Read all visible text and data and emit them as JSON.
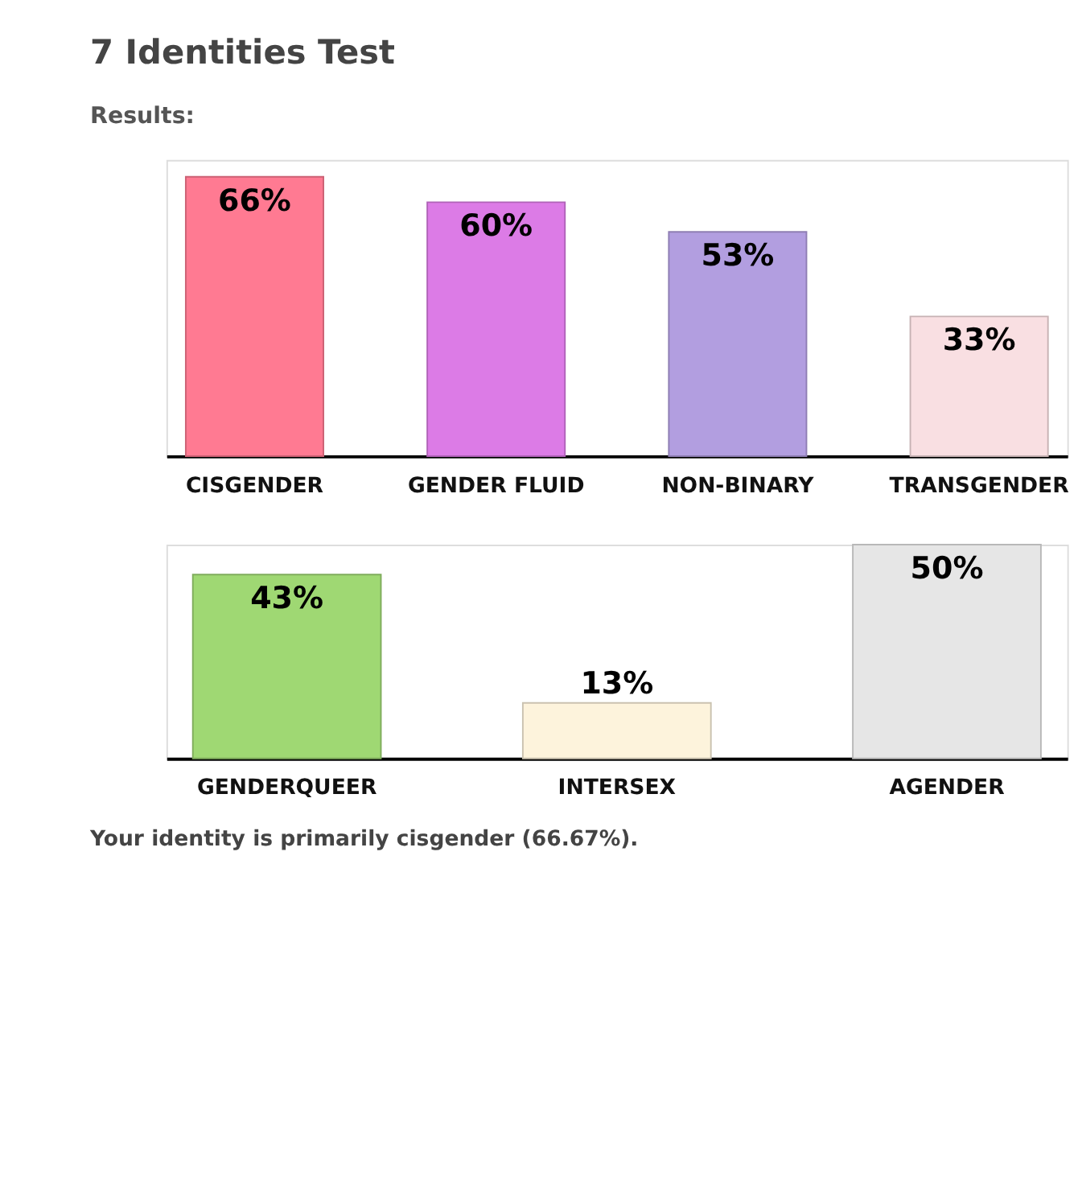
{
  "chart_data": [
    {
      "type": "bar",
      "title": "7 Identities Test",
      "subtitle": "Results:",
      "categories": [
        "CISGENDER",
        "GENDER FLUID",
        "NON-BINARY",
        "TRANSGENDER"
      ],
      "values": [
        66,
        60,
        53,
        33
      ],
      "value_labels": [
        "66%",
        "60%",
        "53%",
        "33%"
      ],
      "colors": [
        "#ff7a92",
        "#dc7be6",
        "#b29ee0",
        "#f9dfe2"
      ],
      "tick_labels": "x"
    },
    {
      "type": "bar",
      "categories": [
        "GENDERQUEER",
        "INTERSEX",
        "AGENDER"
      ],
      "values": [
        43,
        13,
        50
      ],
      "value_labels": [
        "43%",
        "13%",
        "50%"
      ],
      "colors": [
        "#9fd873",
        "#fdf3dc",
        "#e6e6e6"
      ],
      "tick_labels": "x",
      "annotations": [
        "Your identity is primarily cisgender (66.67%)."
      ]
    }
  ]
}
